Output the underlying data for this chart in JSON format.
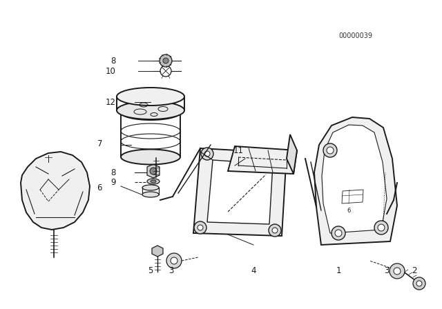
{
  "bg_color": "#ffffff",
  "line_color": "#1a1a1a",
  "fig_width": 6.4,
  "fig_height": 4.48,
  "dpi": 100,
  "diagram_code": "00000039"
}
